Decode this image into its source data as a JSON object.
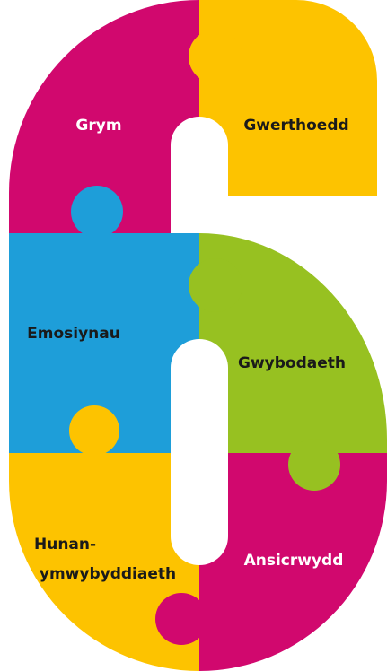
{
  "pieces": [
    {
      "lines": [
        "Grym"
      ]
    },
    {
      "lines": [
        "Gwerthoedd"
      ]
    },
    {
      "lines": [
        "Emosiynau"
      ]
    },
    {
      "lines": [
        "Gwybodaeth"
      ]
    },
    {
      "lines": [
        "Hunan-",
        "ymwybyddiaeth"
      ]
    },
    {
      "lines": [
        "Ansicrwydd"
      ]
    }
  ]
}
